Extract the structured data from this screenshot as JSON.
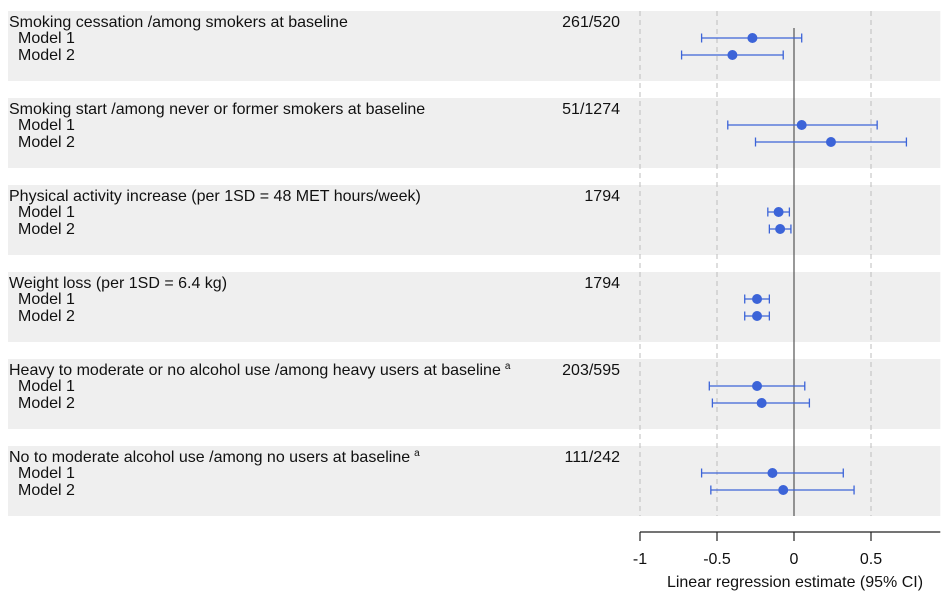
{
  "chart_data": {
    "type": "forest",
    "xlabel": "Linear regression estimate (95% CI)",
    "xlim": [
      -1,
      0.95
    ],
    "xticks": [
      -1,
      -0.5,
      0,
      0.5
    ],
    "xtick_labels": [
      "-1",
      "-0.5",
      "0",
      "0.5"
    ],
    "reference_line": 0,
    "dashed_gridlines": [
      -1,
      -0.5,
      0.5
    ],
    "marker_color": "#3c64d8",
    "band_color": "#efefef",
    "groups": [
      {
        "label": "Smoking cessation /among smokers at baseline",
        "superscript": "",
        "n": "261/520",
        "rows": [
          {
            "label": "Model 1",
            "estimate": -0.27,
            "lower": -0.6,
            "upper": 0.05
          },
          {
            "label": "Model 2",
            "estimate": -0.4,
            "lower": -0.73,
            "upper": -0.07
          }
        ]
      },
      {
        "label": "Smoking start /among never or former smokers at baseline",
        "superscript": "",
        "n": "51/1274",
        "rows": [
          {
            "label": "Model 1",
            "estimate": 0.05,
            "lower": -0.43,
            "upper": 0.54
          },
          {
            "label": "Model 2",
            "estimate": 0.24,
            "lower": -0.25,
            "upper": 0.73
          }
        ]
      },
      {
        "label": "Physical activity increase (per 1SD = 48 MET hours/week)",
        "superscript": "",
        "n": "1794",
        "rows": [
          {
            "label": "Model 1",
            "estimate": -0.1,
            "lower": -0.17,
            "upper": -0.03
          },
          {
            "label": "Model 2",
            "estimate": -0.09,
            "lower": -0.16,
            "upper": -0.02
          }
        ]
      },
      {
        "label": "Weight loss (per 1SD = 6.4 kg)",
        "superscript": "",
        "n": "1794",
        "rows": [
          {
            "label": "Model 1",
            "estimate": -0.24,
            "lower": -0.32,
            "upper": -0.16
          },
          {
            "label": "Model 2",
            "estimate": -0.24,
            "lower": -0.32,
            "upper": -0.16
          }
        ]
      },
      {
        "label": "Heavy to moderate or no alcohol use /among heavy users at baseline",
        "superscript": "a",
        "n": "203/595",
        "rows": [
          {
            "label": "Model 1",
            "estimate": -0.24,
            "lower": -0.55,
            "upper": 0.07
          },
          {
            "label": "Model 2",
            "estimate": -0.21,
            "lower": -0.53,
            "upper": 0.1
          }
        ]
      },
      {
        "label": "No to moderate alcohol use /among no users at baseline",
        "superscript": "a",
        "n": "111/242",
        "rows": [
          {
            "label": "Model 1",
            "estimate": -0.14,
            "lower": -0.6,
            "upper": 0.32
          },
          {
            "label": "Model 2",
            "estimate": -0.07,
            "lower": -0.54,
            "upper": 0.39
          }
        ]
      }
    ]
  }
}
